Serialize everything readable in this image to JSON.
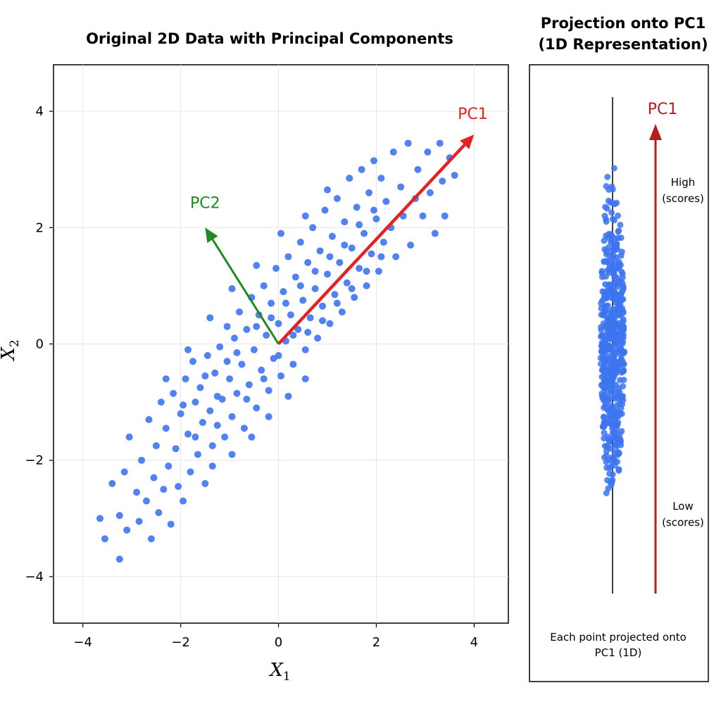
{
  "chart_data": [
    {
      "type": "scatter",
      "title": "Original 2D Data with Principal Components",
      "xlabel": "X",
      "xlabel_sub": "1",
      "ylabel": "X",
      "ylabel_sub": "2",
      "xlim": [
        -4.6,
        4.7
      ],
      "ylim": [
        -4.8,
        4.8
      ],
      "xticks": [
        -4,
        -2,
        0,
        2,
        4
      ],
      "yticks": [
        -4,
        -2,
        0,
        2,
        4
      ],
      "xtick_labels": [
        "−4",
        "−2",
        "0",
        "2",
        "4"
      ],
      "ytick_labels": [
        "−4",
        "−2",
        "0",
        "2",
        "4"
      ],
      "grid": true,
      "point_color": "#3d74f0",
      "series": [
        {
          "points": [
            [
              -3.65,
              -3.0
            ],
            [
              -3.55,
              -3.35
            ],
            [
              -3.4,
              -2.4
            ],
            [
              -3.25,
              -3.7
            ],
            [
              -3.25,
              -2.95
            ],
            [
              -3.15,
              -2.2
            ],
            [
              -3.1,
              -3.2
            ],
            [
              -3.05,
              -1.6
            ],
            [
              -2.9,
              -2.55
            ],
            [
              -2.85,
              -3.05
            ],
            [
              -2.8,
              -2.0
            ],
            [
              -2.7,
              -2.7
            ],
            [
              -2.65,
              -1.3
            ],
            [
              -2.6,
              -3.35
            ],
            [
              -2.55,
              -2.3
            ],
            [
              -2.5,
              -1.75
            ],
            [
              -2.45,
              -2.9
            ],
            [
              -2.4,
              -1.0
            ],
            [
              -2.35,
              -2.5
            ],
            [
              -2.3,
              -1.45
            ],
            [
              -2.25,
              -2.1
            ],
            [
              -2.2,
              -3.1
            ],
            [
              -2.15,
              -0.85
            ],
            [
              -2.1,
              -1.8
            ],
            [
              -2.05,
              -2.45
            ],
            [
              -2.0,
              -1.2
            ],
            [
              -1.95,
              -2.7
            ],
            [
              -1.9,
              -0.6
            ],
            [
              -1.85,
              -1.55
            ],
            [
              -1.8,
              -2.2
            ],
            [
              -1.75,
              -0.3
            ],
            [
              -1.7,
              -1.0
            ],
            [
              -1.65,
              -1.9
            ],
            [
              -1.6,
              -0.75
            ],
            [
              -1.55,
              -1.35
            ],
            [
              -1.5,
              -2.4
            ],
            [
              -1.45,
              -0.2
            ],
            [
              -1.4,
              -1.15
            ],
            [
              -1.35,
              -1.75
            ],
            [
              -1.3,
              -0.5
            ],
            [
              -1.25,
              -1.4
            ],
            [
              -1.2,
              -0.05
            ],
            [
              -1.15,
              -0.95
            ],
            [
              -1.1,
              -1.6
            ],
            [
              -1.05,
              0.3
            ],
            [
              -1.0,
              -0.6
            ],
            [
              -0.95,
              -1.25
            ],
            [
              -0.9,
              0.1
            ],
            [
              -0.85,
              -0.85
            ],
            [
              -0.8,
              0.55
            ],
            [
              -0.75,
              -0.35
            ],
            [
              -0.7,
              -1.45
            ],
            [
              -0.65,
              0.25
            ],
            [
              -0.6,
              -0.7
            ],
            [
              -0.55,
              0.8
            ],
            [
              -0.5,
              -0.1
            ],
            [
              -0.45,
              -1.1
            ],
            [
              -0.4,
              0.5
            ],
            [
              -0.35,
              -0.45
            ],
            [
              -0.3,
              1.0
            ],
            [
              -0.25,
              0.15
            ],
            [
              -0.2,
              -0.8
            ],
            [
              -0.15,
              0.7
            ],
            [
              -0.1,
              -0.25
            ],
            [
              -0.05,
              1.3
            ],
            [
              0.0,
              0.35
            ],
            [
              0.05,
              -0.55
            ],
            [
              0.1,
              0.9
            ],
            [
              0.15,
              0.05
            ],
            [
              0.2,
              1.5
            ],
            [
              0.25,
              0.5
            ],
            [
              0.3,
              -0.35
            ],
            [
              0.35,
              1.15
            ],
            [
              0.4,
              0.25
            ],
            [
              0.45,
              1.75
            ],
            [
              0.5,
              0.75
            ],
            [
              0.55,
              -0.1
            ],
            [
              0.6,
              1.4
            ],
            [
              0.65,
              0.45
            ],
            [
              0.7,
              2.0
            ],
            [
              0.75,
              0.95
            ],
            [
              0.8,
              0.1
            ],
            [
              0.85,
              1.6
            ],
            [
              0.9,
              0.65
            ],
            [
              0.95,
              2.3
            ],
            [
              1.0,
              1.2
            ],
            [
              1.05,
              0.35
            ],
            [
              1.1,
              1.85
            ],
            [
              1.15,
              0.85
            ],
            [
              1.2,
              2.5
            ],
            [
              1.25,
              1.4
            ],
            [
              1.3,
              0.55
            ],
            [
              1.35,
              2.1
            ],
            [
              1.4,
              1.05
            ],
            [
              1.45,
              2.85
            ],
            [
              1.5,
              1.65
            ],
            [
              1.55,
              0.8
            ],
            [
              1.6,
              2.35
            ],
            [
              1.65,
              1.3
            ],
            [
              1.7,
              3.0
            ],
            [
              1.75,
              1.9
            ],
            [
              1.8,
              1.0
            ],
            [
              1.85,
              2.6
            ],
            [
              1.9,
              1.55
            ],
            [
              1.95,
              3.15
            ],
            [
              2.0,
              2.15
            ],
            [
              2.05,
              1.25
            ],
            [
              2.1,
              2.85
            ],
            [
              2.15,
              1.75
            ],
            [
              2.2,
              2.45
            ],
            [
              2.3,
              2.0
            ],
            [
              2.35,
              3.3
            ],
            [
              2.4,
              1.5
            ],
            [
              2.5,
              2.7
            ],
            [
              2.55,
              2.2
            ],
            [
              2.65,
              3.45
            ],
            [
              2.7,
              1.7
            ],
            [
              2.8,
              2.5
            ],
            [
              2.85,
              3.0
            ],
            [
              2.95,
              2.2
            ],
            [
              3.05,
              3.3
            ],
            [
              3.1,
              2.6
            ],
            [
              3.2,
              1.9
            ],
            [
              3.3,
              3.45
            ],
            [
              3.35,
              2.8
            ],
            [
              3.4,
              2.2
            ],
            [
              3.5,
              3.2
            ],
            [
              3.6,
              2.9
            ],
            [
              -1.95,
              -1.05
            ],
            [
              -1.7,
              -1.6
            ],
            [
              -1.5,
              -0.55
            ],
            [
              -1.25,
              -0.9
            ],
            [
              -1.05,
              -0.3
            ],
            [
              -0.85,
              -0.15
            ],
            [
              -0.65,
              -0.95
            ],
            [
              -0.45,
              0.3
            ],
            [
              -0.3,
              -0.6
            ],
            [
              -0.15,
              0.45
            ],
            [
              0.0,
              -0.2
            ],
            [
              0.15,
              0.7
            ],
            [
              0.3,
              0.15
            ],
            [
              0.45,
              1.0
            ],
            [
              0.6,
              0.2
            ],
            [
              0.75,
              1.25
            ],
            [
              0.9,
              0.4
            ],
            [
              1.05,
              1.5
            ],
            [
              1.2,
              0.7
            ],
            [
              1.35,
              1.7
            ],
            [
              1.5,
              0.95
            ],
            [
              1.65,
              2.05
            ],
            [
              1.8,
              1.25
            ],
            [
              1.95,
              2.3
            ],
            [
              2.1,
              1.5
            ],
            [
              -1.35,
              -2.1
            ],
            [
              -0.95,
              -1.9
            ],
            [
              -0.55,
              -1.6
            ],
            [
              -0.2,
              -1.25
            ],
            [
              0.2,
              -0.9
            ],
            [
              0.55,
              -0.6
            ],
            [
              -2.3,
              -0.6
            ],
            [
              -1.85,
              -0.1
            ],
            [
              -1.4,
              0.45
            ],
            [
              -0.95,
              0.95
            ],
            [
              -0.45,
              1.35
            ],
            [
              0.05,
              1.9
            ],
            [
              0.55,
              2.2
            ],
            [
              1.0,
              2.65
            ]
          ]
        }
      ],
      "annotations": [
        {
          "label": "PC1",
          "color": "#e32222",
          "from": [
            0,
            0
          ],
          "to": [
            4.0,
            3.6
          ]
        },
        {
          "label": "PC2",
          "color": "#1f8a1f",
          "from": [
            0,
            0
          ],
          "to": [
            -1.5,
            2.0
          ]
        }
      ]
    },
    {
      "type": "strip",
      "title_line1": "Projection onto PC1",
      "title_line2": "(1D Representation)",
      "arrow_label": "PC1",
      "arrow_color": "#b81c1c",
      "high_label_1": "High",
      "high_label_2": "(scores)",
      "low_label_1": "Low",
      "low_label_2": "(scores)",
      "caption_line1": "Each point projected onto",
      "caption_line2": "PC1 (1D)",
      "ylim": [
        -4.0,
        3.8
      ],
      "values_range": [
        -3.9,
        3.6
      ]
    }
  ]
}
